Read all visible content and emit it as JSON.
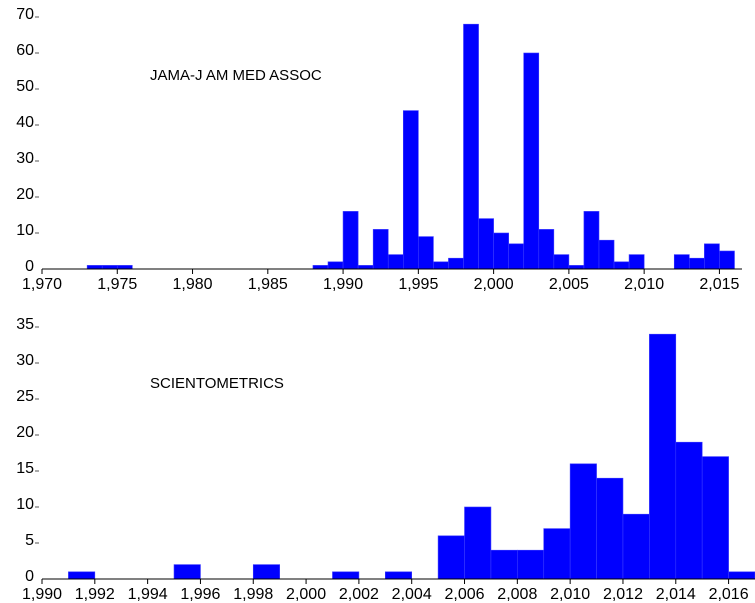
{
  "chart_data": [
    {
      "type": "bar",
      "annotation": "JAMA-J AM MED ASSOC",
      "bar_color": "#0000ff",
      "bar_edge_color": "#3a3aff",
      "xlim": [
        1970,
        2016.5
      ],
      "ylim": [
        0,
        70
      ],
      "yticks": [
        "0",
        "10",
        "20",
        "30",
        "40",
        "50",
        "60",
        "70"
      ],
      "xticks": [
        "1,970",
        "1,975",
        "1,980",
        "1,985",
        "1,990",
        "1,995",
        "2,000",
        "2,005",
        "2,010",
        "2,015"
      ],
      "bin_width": 1,
      "bins": [
        {
          "x": 1973,
          "value": 1
        },
        {
          "x": 1974,
          "value": 1
        },
        {
          "x": 1975,
          "value": 1
        },
        {
          "x": 1988,
          "value": 1
        },
        {
          "x": 1989,
          "value": 2
        },
        {
          "x": 1990,
          "value": 16
        },
        {
          "x": 1991,
          "value": 1
        },
        {
          "x": 1992,
          "value": 11
        },
        {
          "x": 1993,
          "value": 4
        },
        {
          "x": 1994,
          "value": 44
        },
        {
          "x": 1995,
          "value": 9
        },
        {
          "x": 1996,
          "value": 2
        },
        {
          "x": 1997,
          "value": 3
        },
        {
          "x": 1998,
          "value": 68
        },
        {
          "x": 1999,
          "value": 14
        },
        {
          "x": 2000,
          "value": 10
        },
        {
          "x": 2001,
          "value": 7
        },
        {
          "x": 2002,
          "value": 60
        },
        {
          "x": 2003,
          "value": 11
        },
        {
          "x": 2004,
          "value": 4
        },
        {
          "x": 2005,
          "value": 1
        },
        {
          "x": 2006,
          "value": 16
        },
        {
          "x": 2007,
          "value": 8
        },
        {
          "x": 2008,
          "value": 2
        },
        {
          "x": 2009,
          "value": 4
        },
        {
          "x": 2012,
          "value": 4
        },
        {
          "x": 2013,
          "value": 3
        },
        {
          "x": 2014,
          "value": 7
        },
        {
          "x": 2015,
          "value": 5
        }
      ]
    },
    {
      "type": "bar",
      "annotation": "SCIENTOMETRICS",
      "bar_color": "#0000ff",
      "bar_edge_color": "#3a3aff",
      "xlim": [
        1990,
        2017
      ],
      "ylim": [
        0,
        35
      ],
      "yticks": [
        "0",
        "5",
        "10",
        "15",
        "20",
        "25",
        "30",
        "35"
      ],
      "xticks": [
        "1,990",
        "1,992",
        "1,994",
        "1,996",
        "1,998",
        "2,000",
        "2,002",
        "2,004",
        "2,006",
        "2,008",
        "2,010",
        "2,012",
        "2,014",
        "2,016"
      ],
      "bin_width": 1,
      "bins": [
        {
          "x": 1991,
          "value": 1
        },
        {
          "x": 1995,
          "value": 2
        },
        {
          "x": 1998,
          "value": 2
        },
        {
          "x": 2001,
          "value": 1
        },
        {
          "x": 2003,
          "value": 1
        },
        {
          "x": 2005,
          "value": 6
        },
        {
          "x": 2006,
          "value": 10
        },
        {
          "x": 2007,
          "value": 4
        },
        {
          "x": 2008,
          "value": 4
        },
        {
          "x": 2009,
          "value": 7
        },
        {
          "x": 2010,
          "value": 16
        },
        {
          "x": 2011,
          "value": 14
        },
        {
          "x": 2012,
          "value": 9
        },
        {
          "x": 2013,
          "value": 34
        },
        {
          "x": 2014,
          "value": 19
        },
        {
          "x": 2015,
          "value": 17
        },
        {
          "x": 2016,
          "value": 1
        }
      ]
    }
  ]
}
